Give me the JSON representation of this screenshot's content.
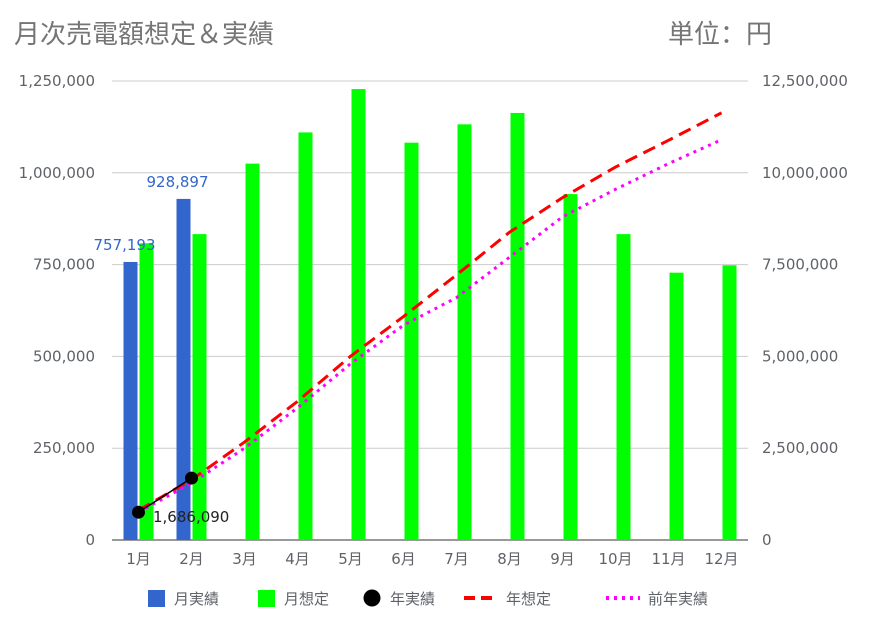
{
  "title": "月次売電額想定＆実績",
  "unit": "単位：円",
  "chart_data": {
    "type": "bar",
    "categories": [
      "1月",
      "2月",
      "3月",
      "4月",
      "5月",
      "6月",
      "7月",
      "8月",
      "9月",
      "10月",
      "11月",
      "12月"
    ],
    "left_axis": {
      "ylim": [
        0,
        1250000
      ],
      "ticks": [
        "0",
        "250,000",
        "500,000",
        "750,000",
        "1,000,000",
        "1,250,000"
      ]
    },
    "right_axis": {
      "ylim": [
        0,
        12500000
      ],
      "ticks": [
        "0",
        "2,500,000",
        "5,000,000",
        "7,500,000",
        "10,000,000",
        "12,500,000"
      ]
    },
    "grid": true,
    "legend_position": "bottom",
    "series": [
      {
        "name": "月実績",
        "type": "bar",
        "axis": "left",
        "color": "#3366cc",
        "values": [
          757193,
          928897,
          null,
          null,
          null,
          null,
          null,
          null,
          null,
          null,
          null,
          null
        ],
        "labels": [
          "757,193",
          "928,897"
        ]
      },
      {
        "name": "月想定",
        "type": "bar",
        "axis": "left",
        "color": "#00ff00",
        "values": [
          808000,
          833000,
          1025000,
          1110000,
          1228000,
          1082000,
          1132000,
          1163000,
          942000,
          833000,
          728000,
          748000
        ]
      },
      {
        "name": "年実績",
        "type": "scatter",
        "axis": "right",
        "color": "#000000",
        "values": [
          757193,
          1686090,
          null,
          null,
          null,
          null,
          null,
          null,
          null,
          null,
          null,
          null
        ],
        "labels": [
          "1,686,090"
        ]
      },
      {
        "name": "年想定",
        "type": "line",
        "style": "dashed",
        "axis": "right",
        "color": "#ff0000",
        "values": [
          808000,
          1641000,
          2666000,
          3776000,
          5004000,
          6086000,
          7218000,
          8381000,
          9323000,
          10156000,
          10884000,
          11632000
        ]
      },
      {
        "name": "前年実績",
        "type": "line",
        "style": "dotted",
        "axis": "right",
        "color": "#ff00ff",
        "values": [
          760000,
          1550000,
          2500000,
          3600000,
          4800000,
          5850000,
          6600000,
          7700000,
          8800000,
          9550000,
          10250000,
          10900000
        ]
      }
    ]
  }
}
